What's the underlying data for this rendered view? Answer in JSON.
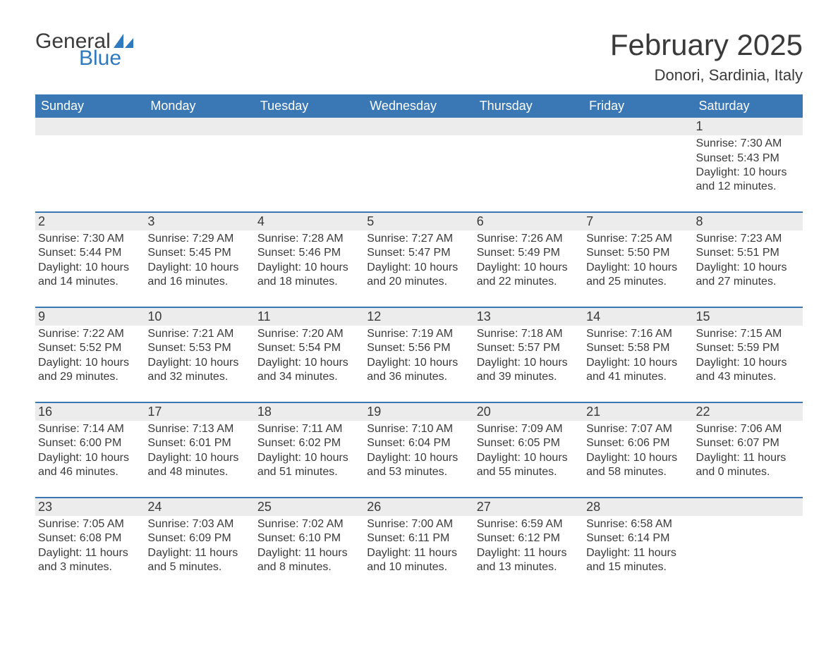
{
  "logo": {
    "word1": "General",
    "word2": "Blue",
    "sail_color": "#2f7abf",
    "text_color": "#3b3b3b"
  },
  "title": "February 2025",
  "location": "Donori, Sardinia, Italy",
  "colors": {
    "header_bg": "#3a78b5",
    "header_text": "#ffffff",
    "daynum_bg": "#ececec",
    "border": "#3a78b5",
    "body_text": "#3a3a3a",
    "page_bg": "#ffffff"
  },
  "typography": {
    "title_fontsize": 42,
    "location_fontsize": 22,
    "dow_fontsize": 18,
    "cell_fontsize": 16
  },
  "days_of_week": [
    "Sunday",
    "Monday",
    "Tuesday",
    "Wednesday",
    "Thursday",
    "Friday",
    "Saturday"
  ],
  "weeks": [
    [
      null,
      null,
      null,
      null,
      null,
      null,
      {
        "n": "1",
        "sunrise": "Sunrise: 7:30 AM",
        "sunset": "Sunset: 5:43 PM",
        "day1": "Daylight: 10 hours",
        "day2": "and 12 minutes."
      }
    ],
    [
      {
        "n": "2",
        "sunrise": "Sunrise: 7:30 AM",
        "sunset": "Sunset: 5:44 PM",
        "day1": "Daylight: 10 hours",
        "day2": "and 14 minutes."
      },
      {
        "n": "3",
        "sunrise": "Sunrise: 7:29 AM",
        "sunset": "Sunset: 5:45 PM",
        "day1": "Daylight: 10 hours",
        "day2": "and 16 minutes."
      },
      {
        "n": "4",
        "sunrise": "Sunrise: 7:28 AM",
        "sunset": "Sunset: 5:46 PM",
        "day1": "Daylight: 10 hours",
        "day2": "and 18 minutes."
      },
      {
        "n": "5",
        "sunrise": "Sunrise: 7:27 AM",
        "sunset": "Sunset: 5:47 PM",
        "day1": "Daylight: 10 hours",
        "day2": "and 20 minutes."
      },
      {
        "n": "6",
        "sunrise": "Sunrise: 7:26 AM",
        "sunset": "Sunset: 5:49 PM",
        "day1": "Daylight: 10 hours",
        "day2": "and 22 minutes."
      },
      {
        "n": "7",
        "sunrise": "Sunrise: 7:25 AM",
        "sunset": "Sunset: 5:50 PM",
        "day1": "Daylight: 10 hours",
        "day2": "and 25 minutes."
      },
      {
        "n": "8",
        "sunrise": "Sunrise: 7:23 AM",
        "sunset": "Sunset: 5:51 PM",
        "day1": "Daylight: 10 hours",
        "day2": "and 27 minutes."
      }
    ],
    [
      {
        "n": "9",
        "sunrise": "Sunrise: 7:22 AM",
        "sunset": "Sunset: 5:52 PM",
        "day1": "Daylight: 10 hours",
        "day2": "and 29 minutes."
      },
      {
        "n": "10",
        "sunrise": "Sunrise: 7:21 AM",
        "sunset": "Sunset: 5:53 PM",
        "day1": "Daylight: 10 hours",
        "day2": "and 32 minutes."
      },
      {
        "n": "11",
        "sunrise": "Sunrise: 7:20 AM",
        "sunset": "Sunset: 5:54 PM",
        "day1": "Daylight: 10 hours",
        "day2": "and 34 minutes."
      },
      {
        "n": "12",
        "sunrise": "Sunrise: 7:19 AM",
        "sunset": "Sunset: 5:56 PM",
        "day1": "Daylight: 10 hours",
        "day2": "and 36 minutes."
      },
      {
        "n": "13",
        "sunrise": "Sunrise: 7:18 AM",
        "sunset": "Sunset: 5:57 PM",
        "day1": "Daylight: 10 hours",
        "day2": "and 39 minutes."
      },
      {
        "n": "14",
        "sunrise": "Sunrise: 7:16 AM",
        "sunset": "Sunset: 5:58 PM",
        "day1": "Daylight: 10 hours",
        "day2": "and 41 minutes."
      },
      {
        "n": "15",
        "sunrise": "Sunrise: 7:15 AM",
        "sunset": "Sunset: 5:59 PM",
        "day1": "Daylight: 10 hours",
        "day2": "and 43 minutes."
      }
    ],
    [
      {
        "n": "16",
        "sunrise": "Sunrise: 7:14 AM",
        "sunset": "Sunset: 6:00 PM",
        "day1": "Daylight: 10 hours",
        "day2": "and 46 minutes."
      },
      {
        "n": "17",
        "sunrise": "Sunrise: 7:13 AM",
        "sunset": "Sunset: 6:01 PM",
        "day1": "Daylight: 10 hours",
        "day2": "and 48 minutes."
      },
      {
        "n": "18",
        "sunrise": "Sunrise: 7:11 AM",
        "sunset": "Sunset: 6:02 PM",
        "day1": "Daylight: 10 hours",
        "day2": "and 51 minutes."
      },
      {
        "n": "19",
        "sunrise": "Sunrise: 7:10 AM",
        "sunset": "Sunset: 6:04 PM",
        "day1": "Daylight: 10 hours",
        "day2": "and 53 minutes."
      },
      {
        "n": "20",
        "sunrise": "Sunrise: 7:09 AM",
        "sunset": "Sunset: 6:05 PM",
        "day1": "Daylight: 10 hours",
        "day2": "and 55 minutes."
      },
      {
        "n": "21",
        "sunrise": "Sunrise: 7:07 AM",
        "sunset": "Sunset: 6:06 PM",
        "day1": "Daylight: 10 hours",
        "day2": "and 58 minutes."
      },
      {
        "n": "22",
        "sunrise": "Sunrise: 7:06 AM",
        "sunset": "Sunset: 6:07 PM",
        "day1": "Daylight: 11 hours",
        "day2": "and 0 minutes."
      }
    ],
    [
      {
        "n": "23",
        "sunrise": "Sunrise: 7:05 AM",
        "sunset": "Sunset: 6:08 PM",
        "day1": "Daylight: 11 hours",
        "day2": "and 3 minutes."
      },
      {
        "n": "24",
        "sunrise": "Sunrise: 7:03 AM",
        "sunset": "Sunset: 6:09 PM",
        "day1": "Daylight: 11 hours",
        "day2": "and 5 minutes."
      },
      {
        "n": "25",
        "sunrise": "Sunrise: 7:02 AM",
        "sunset": "Sunset: 6:10 PM",
        "day1": "Daylight: 11 hours",
        "day2": "and 8 minutes."
      },
      {
        "n": "26",
        "sunrise": "Sunrise: 7:00 AM",
        "sunset": "Sunset: 6:11 PM",
        "day1": "Daylight: 11 hours",
        "day2": "and 10 minutes."
      },
      {
        "n": "27",
        "sunrise": "Sunrise: 6:59 AM",
        "sunset": "Sunset: 6:12 PM",
        "day1": "Daylight: 11 hours",
        "day2": "and 13 minutes."
      },
      {
        "n": "28",
        "sunrise": "Sunrise: 6:58 AM",
        "sunset": "Sunset: 6:14 PM",
        "day1": "Daylight: 11 hours",
        "day2": "and 15 minutes."
      },
      null
    ]
  ]
}
